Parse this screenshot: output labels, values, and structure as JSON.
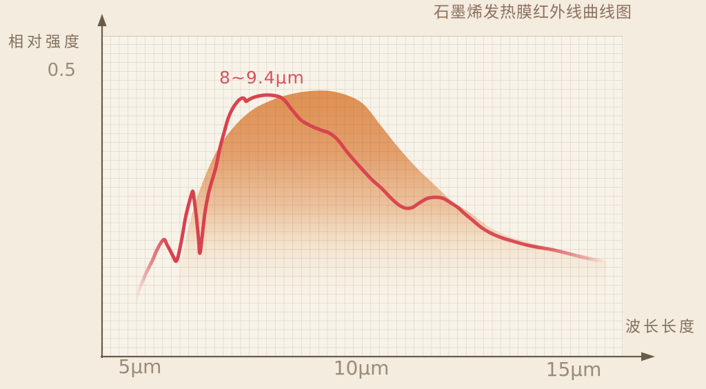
{
  "colors": {
    "background": "#f3ecdf",
    "plot_background": "#f8f3e9",
    "grid_line": "#6e5c48",
    "axis_line": "#6b5c4a",
    "curve_red": "#d7414d",
    "envelope_orange": "#de8a48",
    "annotation_red": "#d4555f",
    "title_brown": "#8d7060",
    "tick_brown": "#9b8b77"
  },
  "chart_data": {
    "type": "line",
    "title": "石墨烯发热膜红外线曲线图",
    "ylabel": "相对强度",
    "xlabel": "波长长度",
    "y_tick_label": "0.5",
    "x_tick_labels": [
      "5μm",
      "10μm",
      "15μm"
    ],
    "x_tick_values_um": [
      5,
      10,
      15
    ],
    "annotation": "8~9.4μm",
    "x_unit": "μm",
    "xlim": [
      4.1,
      16.1
    ],
    "ylim": [
      0,
      0.56
    ],
    "grid": true,
    "legend": "none",
    "series": [
      {
        "name": "infrared-emission-curve",
        "type": "line",
        "color": "#d7414d",
        "points": [
          [
            4.9,
            0.097
          ],
          [
            4.98,
            0.118
          ],
          [
            5.08,
            0.136
          ],
          [
            5.17,
            0.151
          ],
          [
            5.29,
            0.169
          ],
          [
            5.38,
            0.185
          ],
          [
            5.48,
            0.199
          ],
          [
            5.56,
            0.205
          ],
          [
            5.62,
            0.196
          ],
          [
            5.68,
            0.188
          ],
          [
            5.76,
            0.176
          ],
          [
            5.83,
            0.167
          ],
          [
            5.89,
            0.179
          ],
          [
            5.97,
            0.209
          ],
          [
            6.05,
            0.244
          ],
          [
            6.13,
            0.269
          ],
          [
            6.19,
            0.285
          ],
          [
            6.22,
            0.289
          ],
          [
            6.25,
            0.274
          ],
          [
            6.3,
            0.244
          ],
          [
            6.35,
            0.205
          ],
          [
            6.38,
            0.181
          ],
          [
            6.43,
            0.209
          ],
          [
            6.49,
            0.249
          ],
          [
            6.57,
            0.283
          ],
          [
            6.65,
            0.306
          ],
          [
            6.75,
            0.332
          ],
          [
            6.84,
            0.365
          ],
          [
            6.94,
            0.393
          ],
          [
            7.03,
            0.417
          ],
          [
            7.13,
            0.434
          ],
          [
            7.24,
            0.446
          ],
          [
            7.33,
            0.452
          ],
          [
            7.4,
            0.452
          ],
          [
            7.44,
            0.447
          ],
          [
            7.51,
            0.45
          ],
          [
            7.62,
            0.454
          ],
          [
            7.78,
            0.457
          ],
          [
            7.94,
            0.458
          ],
          [
            8.1,
            0.457
          ],
          [
            8.24,
            0.454
          ],
          [
            8.35,
            0.447
          ],
          [
            8.46,
            0.436
          ],
          [
            8.59,
            0.424
          ],
          [
            8.71,
            0.414
          ],
          [
            8.86,
            0.407
          ],
          [
            9.02,
            0.401
          ],
          [
            9.19,
            0.396
          ],
          [
            9.37,
            0.391
          ],
          [
            9.56,
            0.379
          ],
          [
            9.75,
            0.36
          ],
          [
            9.94,
            0.343
          ],
          [
            10.14,
            0.326
          ],
          [
            10.35,
            0.309
          ],
          [
            10.56,
            0.295
          ],
          [
            10.76,
            0.279
          ],
          [
            10.95,
            0.266
          ],
          [
            11.11,
            0.26
          ],
          [
            11.27,
            0.261
          ],
          [
            11.43,
            0.269
          ],
          [
            11.62,
            0.277
          ],
          [
            11.81,
            0.279
          ],
          [
            11.98,
            0.277
          ],
          [
            12.16,
            0.269
          ],
          [
            12.32,
            0.261
          ],
          [
            12.48,
            0.25
          ],
          [
            12.67,
            0.238
          ],
          [
            12.86,
            0.226
          ],
          [
            13.08,
            0.216
          ],
          [
            13.33,
            0.208
          ],
          [
            13.59,
            0.202
          ],
          [
            13.87,
            0.196
          ],
          [
            14.19,
            0.191
          ],
          [
            14.51,
            0.187
          ],
          [
            14.83,
            0.181
          ],
          [
            15.14,
            0.175
          ],
          [
            15.43,
            0.17
          ],
          [
            15.62,
            0.168
          ]
        ]
      },
      {
        "name": "radiation-envelope-fill",
        "type": "area",
        "color": "#de8a48",
        "points": [
          [
            5.84,
            0.111
          ],
          [
            6.03,
            0.196
          ],
          [
            6.27,
            0.268
          ],
          [
            6.54,
            0.323
          ],
          [
            6.83,
            0.368
          ],
          [
            7.17,
            0.403
          ],
          [
            7.57,
            0.431
          ],
          [
            8.0,
            0.448
          ],
          [
            8.44,
            0.459
          ],
          [
            8.92,
            0.465
          ],
          [
            9.37,
            0.465
          ],
          [
            9.79,
            0.457
          ],
          [
            10.16,
            0.441
          ],
          [
            10.54,
            0.405
          ],
          [
            10.94,
            0.367
          ],
          [
            11.35,
            0.332
          ],
          [
            11.75,
            0.303
          ],
          [
            12.17,
            0.273
          ],
          [
            12.6,
            0.252
          ],
          [
            13.08,
            0.225
          ],
          [
            13.56,
            0.209
          ],
          [
            14.03,
            0.199
          ],
          [
            14.51,
            0.19
          ],
          [
            15.08,
            0.18
          ],
          [
            15.75,
            0.168
          ]
        ]
      }
    ]
  }
}
